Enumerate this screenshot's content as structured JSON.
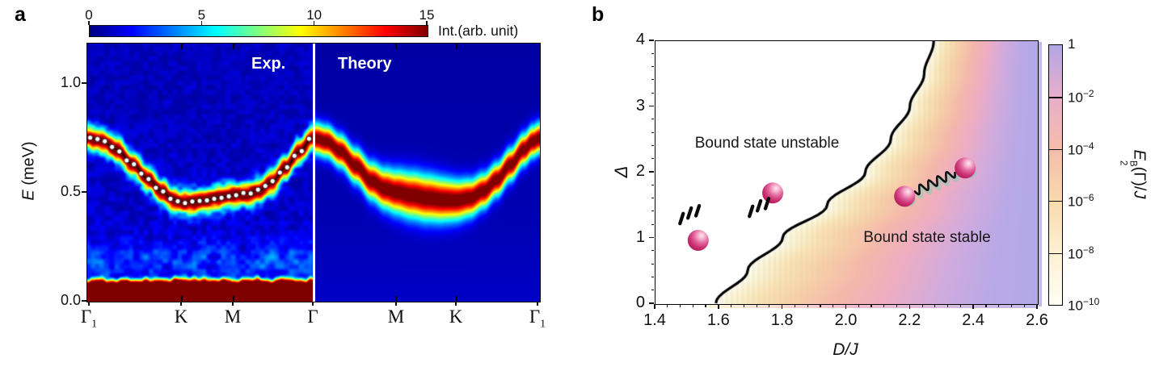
{
  "figure": {
    "panel_a_label": "a",
    "panel_b_label": "b"
  },
  "panel_a": {
    "colorbar": {
      "label": "Int.(arb. unit)",
      "ticks": [
        0,
        5,
        10,
        15
      ]
    },
    "exp_label": "Exp.",
    "theory_label": "Theory",
    "ylabel_prefix": "E",
    "ylabel_suffix": " (meV)",
    "yticks": [
      "0.0",
      "0.5",
      "1.0"
    ],
    "xlabels": [
      {
        "text": "Γ",
        "sub": "1"
      },
      {
        "text": "K",
        "sub": ""
      },
      {
        "text": "M",
        "sub": ""
      },
      {
        "text": "Γ",
        "sub": ""
      },
      {
        "text": "M",
        "sub": ""
      },
      {
        "text": "K",
        "sub": ""
      },
      {
        "text": "Γ",
        "sub": "1"
      }
    ]
  },
  "panel_b": {
    "region_unstable": "Bound state unstable",
    "region_stable": "Bound state stable",
    "xlabel": "D/J",
    "ylabel": "Δ",
    "xticks": [
      "1.4",
      "1.6",
      "1.8",
      "2.0",
      "2.2",
      "2.4",
      "2.6"
    ],
    "yticks": [
      "0",
      "1",
      "2",
      "3",
      "4"
    ],
    "colorbar_ticks": [
      {
        "base": "1",
        "exp": ""
      },
      {
        "base": "10",
        "exp": "-2"
      },
      {
        "base": "10",
        "exp": "-4"
      },
      {
        "base": "10",
        "exp": "-6"
      },
      {
        "base": "10",
        "exp": "-8"
      },
      {
        "base": "10",
        "exp": "-10"
      }
    ],
    "colorbar_label": {
      "pre": "E",
      "sup": "B",
      "sub": "2",
      "post1": "(Γ)/",
      "post2": "J"
    }
  },
  "chart_data": [
    {
      "type": "heatmap",
      "panel": "a",
      "subpanels": [
        "Exp.",
        "Theory"
      ],
      "colormap": "jet",
      "colorbar": {
        "min": 0,
        "max": 15,
        "ticks": [
          0,
          5,
          10,
          15
        ],
        "label": "Int.(arb. unit)"
      },
      "ylabel": "E (meV)",
      "ylim": [
        0,
        1.185
      ],
      "yticks": [
        0.0,
        0.5,
        1.0
      ],
      "kpath_exp": {
        "labels": [
          "Γ1",
          "K",
          "M",
          "Γ"
        ],
        "positions": [
          0,
          0.42,
          0.65,
          1
        ],
        "inner_tick_t": [
          0.42,
          0.65
        ]
      },
      "kpath_theory": {
        "labels": [
          "Γ",
          "M",
          "K",
          "Γ1"
        ],
        "positions": [
          0,
          0.36,
          0.63,
          1
        ],
        "inner_tick_t": [
          0.36,
          0.63
        ]
      },
      "dispersion_exp": [
        [
          0,
          0.755
        ],
        [
          0.06,
          0.74
        ],
        [
          0.13,
          0.7
        ],
        [
          0.2,
          0.633
        ],
        [
          0.27,
          0.563
        ],
        [
          0.33,
          0.507
        ],
        [
          0.38,
          0.47
        ],
        [
          0.42,
          0.458
        ],
        [
          0.47,
          0.458
        ],
        [
          0.52,
          0.466
        ],
        [
          0.58,
          0.479
        ],
        [
          0.65,
          0.49
        ],
        [
          0.7,
          0.495
        ],
        [
          0.76,
          0.51
        ],
        [
          0.82,
          0.55
        ],
        [
          0.88,
          0.617
        ],
        [
          0.94,
          0.688
        ],
        [
          1,
          0.752
        ]
      ],
      "dispersion_theory": [
        [
          0,
          0.75
        ],
        [
          0.05,
          0.737
        ],
        [
          0.11,
          0.693
        ],
        [
          0.18,
          0.625
        ],
        [
          0.25,
          0.555
        ],
        [
          0.31,
          0.52
        ],
        [
          0.36,
          0.505
        ],
        [
          0.43,
          0.49
        ],
        [
          0.5,
          0.477
        ],
        [
          0.57,
          0.469
        ],
        [
          0.63,
          0.467
        ],
        [
          0.69,
          0.478
        ],
        [
          0.75,
          0.51
        ],
        [
          0.81,
          0.562
        ],
        [
          0.87,
          0.63
        ],
        [
          0.93,
          0.7
        ],
        [
          0.97,
          0.737
        ],
        [
          1,
          0.752
        ]
      ],
      "band_peak_intensity": 15,
      "band_sigma_meV": {
        "exp": 0.033,
        "theory": 0.05
      },
      "elastic_line_cutoff_meV": 0.105,
      "markers": {
        "count": 31,
        "style": "white circles on black fit line"
      }
    },
    {
      "type": "heatmap",
      "panel": "b",
      "xlabel": "D/J",
      "ylabel": "Δ",
      "xlim": [
        1.4,
        2.6
      ],
      "ylim": [
        0,
        4
      ],
      "xticks": [
        1.4,
        1.6,
        1.8,
        2.0,
        2.2,
        2.4,
        2.6
      ],
      "yticks": [
        0,
        1,
        2,
        3,
        4
      ],
      "x_minor_step": 0.04,
      "y_minor_step": 0.2,
      "colorbar": {
        "scale": "log",
        "tick_values": [
          1,
          0.01,
          0.0001,
          1e-06,
          1e-08,
          1e-10
        ],
        "label": "E2^B(Γ)/J"
      },
      "boundary_points": [
        [
          1.59,
          0
        ],
        [
          1.69,
          0.5
        ],
        [
          1.8,
          1.0
        ],
        [
          1.94,
          1.5
        ],
        [
          2.06,
          2.0
        ],
        [
          2.14,
          2.5
        ],
        [
          2.2,
          3.0
        ],
        [
          2.245,
          3.5
        ],
        [
          2.275,
          4.0
        ]
      ],
      "gradient_stops": [
        [
          0,
          "#fffdf0"
        ],
        [
          0.05,
          "#fdf4d3"
        ],
        [
          0.13,
          "#fae4b6"
        ],
        [
          0.25,
          "#f7cfa9"
        ],
        [
          0.38,
          "#f4b8ab"
        ],
        [
          0.52,
          "#eeadc2"
        ],
        [
          0.68,
          "#d2abdd"
        ],
        [
          0.85,
          "#b9a9e6"
        ],
        [
          1,
          "#b2a8e8"
        ]
      ],
      "regions": [
        {
          "label": "Bound state unstable",
          "center": [
            1.76,
            2.42
          ]
        },
        {
          "label": "Bound state stable",
          "center": [
            2.255,
            0.99
          ]
        }
      ],
      "magnons_unstable": [
        [
          1.534,
          0.97
        ],
        [
          1.768,
          1.69
        ]
      ],
      "magnons_stable": [
        [
          2.182,
          1.64
        ],
        [
          2.372,
          2.07
        ]
      ],
      "dash_groups": [
        {
          "center": [
            1.507,
            1.36
          ],
          "dash_angle_deg": 72,
          "row_angle_deg": 26
        },
        {
          "center": [
            1.725,
            1.47
          ],
          "dash_angle_deg": 72,
          "row_angle_deg": 26
        }
      ],
      "boundary_color": "#000000",
      "magnon_color": "#c22569",
      "spring_color": "#111111",
      "spring_shadow_color": "#6fd0bd"
    }
  ]
}
